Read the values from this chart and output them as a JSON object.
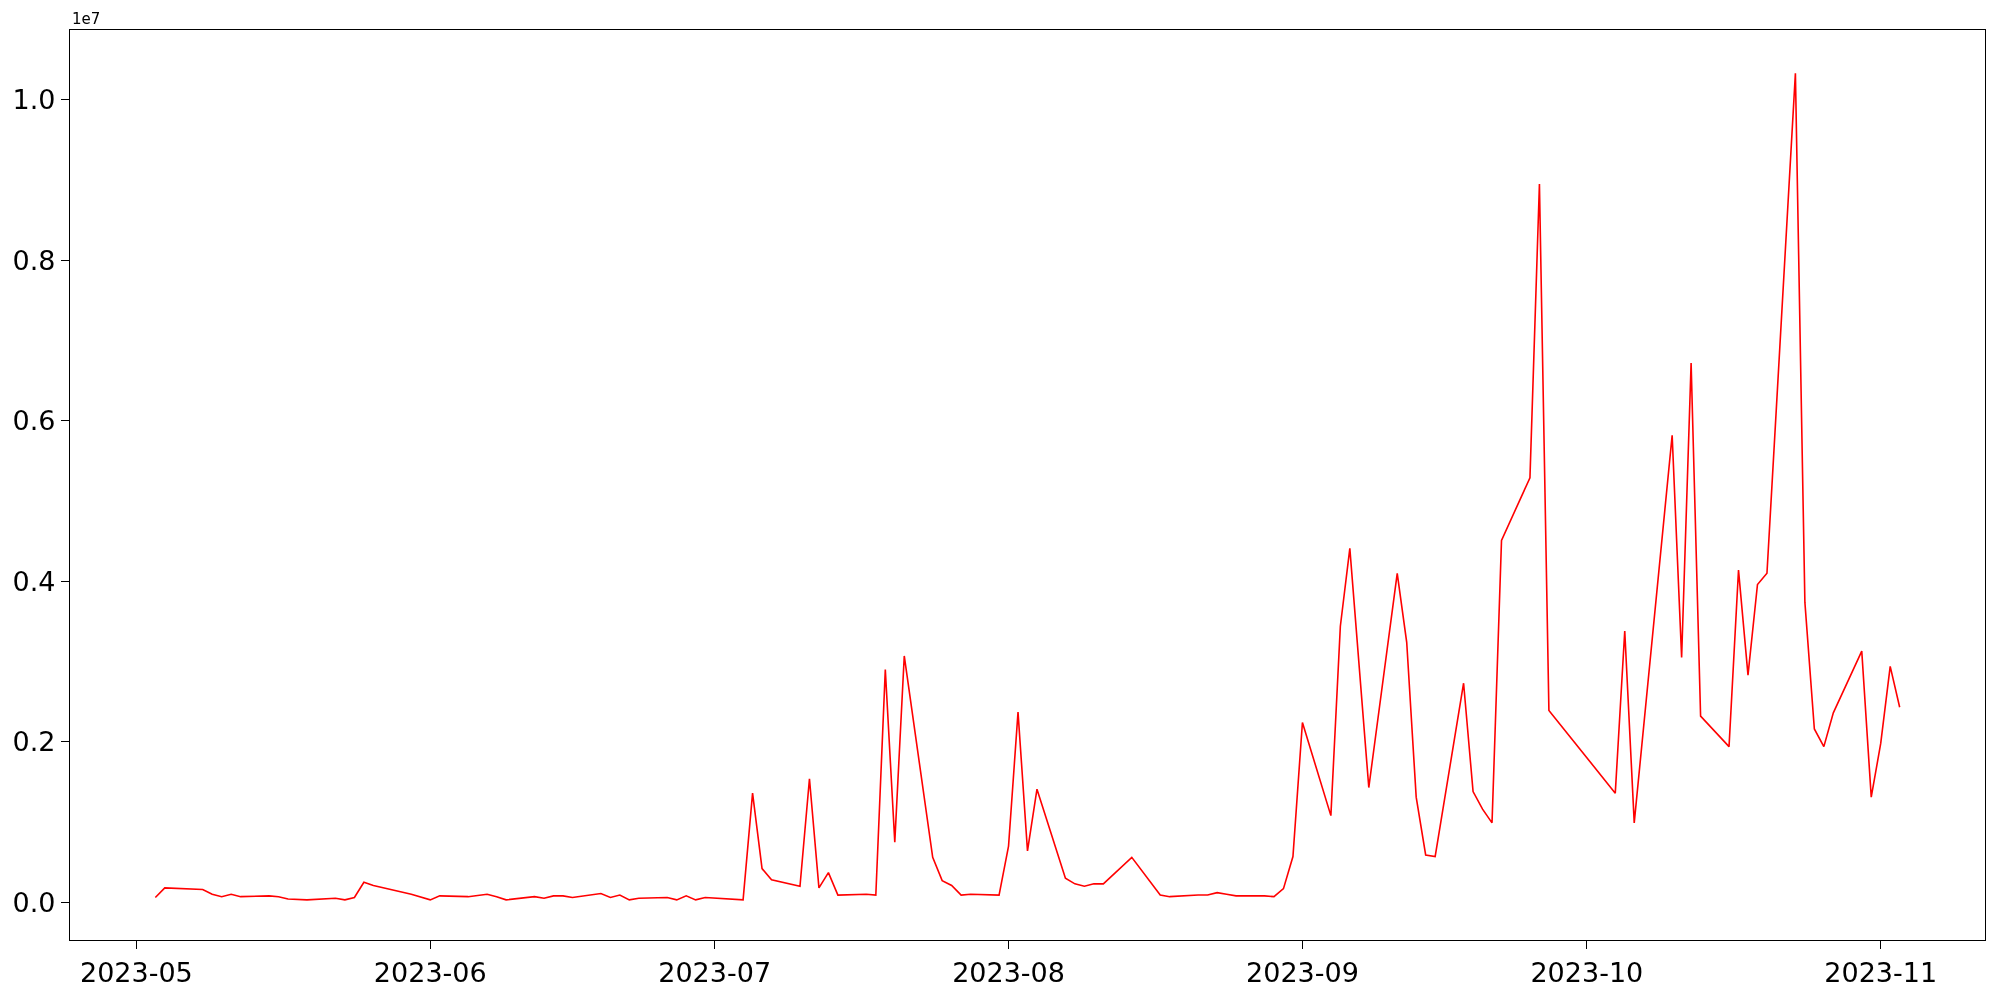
{
  "chart_data": {
    "type": "line",
    "annotations": [
      "1e7"
    ],
    "x": [
      "2023-05-03",
      "2023-05-04",
      "2023-05-08",
      "2023-05-09",
      "2023-05-10",
      "2023-05-11",
      "2023-05-12",
      "2023-05-15",
      "2023-05-16",
      "2023-05-17",
      "2023-05-19",
      "2023-05-22",
      "2023-05-23",
      "2023-05-24",
      "2023-05-25",
      "2023-05-26",
      "2023-05-30",
      "2023-06-01",
      "2023-06-02",
      "2023-06-05",
      "2023-06-07",
      "2023-06-08",
      "2023-06-09",
      "2023-06-12",
      "2023-06-13",
      "2023-06-14",
      "2023-06-15",
      "2023-06-16",
      "2023-06-19",
      "2023-06-20",
      "2023-06-21",
      "2023-06-22",
      "2023-06-23",
      "2023-06-26",
      "2023-06-27",
      "2023-06-28",
      "2023-06-29",
      "2023-06-30",
      "2023-07-04",
      "2023-07-05",
      "2023-07-06",
      "2023-07-07",
      "2023-07-10",
      "2023-07-11",
      "2023-07-12",
      "2023-07-13",
      "2023-07-14",
      "2023-07-17",
      "2023-07-18",
      "2023-07-19",
      "2023-07-20",
      "2023-07-21",
      "2023-07-24",
      "2023-07-25",
      "2023-07-26",
      "2023-07-27",
      "2023-07-28",
      "2023-07-31",
      "2023-08-01",
      "2023-08-02",
      "2023-08-03",
      "2023-08-04",
      "2023-08-07",
      "2023-08-08",
      "2023-08-09",
      "2023-08-10",
      "2023-08-11",
      "2023-08-14",
      "2023-08-17",
      "2023-08-18",
      "2023-08-21",
      "2023-08-22",
      "2023-08-23",
      "2023-08-24",
      "2023-08-25",
      "2023-08-28",
      "2023-08-29",
      "2023-08-30",
      "2023-08-31",
      "2023-09-01",
      "2023-09-04",
      "2023-09-05",
      "2023-09-06",
      "2023-09-08",
      "2023-09-11",
      "2023-09-12",
      "2023-09-13",
      "2023-09-14",
      "2023-09-15",
      "2023-09-18",
      "2023-09-19",
      "2023-09-20",
      "2023-09-21",
      "2023-09-22",
      "2023-09-25",
      "2023-09-26",
      "2023-09-27",
      "2023-10-04",
      "2023-10-05",
      "2023-10-06",
      "2023-10-10",
      "2023-10-11",
      "2023-10-12",
      "2023-10-13",
      "2023-10-16",
      "2023-10-17",
      "2023-10-18",
      "2023-10-19",
      "2023-10-20",
      "2023-10-23",
      "2023-10-24",
      "2023-10-25",
      "2023-10-26",
      "2023-10-27",
      "2023-10-30",
      "2023-10-31",
      "2023-11-01",
      "2023-11-02",
      "2023-11-03"
    ],
    "series": [
      {
        "color": "#ff0000",
        "values": [
          0.006,
          0.018,
          0.016,
          0.01,
          0.007,
          0.01,
          0.007,
          0.008,
          0.007,
          0.004,
          0.003,
          0.005,
          0.003,
          0.006,
          0.025,
          0.021,
          0.01,
          0.003,
          0.008,
          0.007,
          0.01,
          0.007,
          0.003,
          0.007,
          0.005,
          0.008,
          0.008,
          0.006,
          0.011,
          0.006,
          0.009,
          0.003,
          0.005,
          0.006,
          0.003,
          0.008,
          0.003,
          0.006,
          0.003,
          0.136,
          0.042,
          0.028,
          0.02,
          0.154,
          0.018,
          0.037,
          0.009,
          0.01,
          0.009,
          0.29,
          0.075,
          0.307,
          0.056,
          0.027,
          0.021,
          0.009,
          0.01,
          0.009,
          0.07,
          0.237,
          0.064,
          0.141,
          0.03,
          0.023,
          0.02,
          0.023,
          0.023,
          0.056,
          0.009,
          0.007,
          0.009,
          0.009,
          0.012,
          0.01,
          0.008,
          0.008,
          0.007,
          0.017,
          0.057,
          0.224,
          0.108,
          0.344,
          0.441,
          0.143,
          0.41,
          0.324,
          0.131,
          0.059,
          0.057,
          0.273,
          0.138,
          0.116,
          0.099,
          0.451,
          0.529,
          0.895,
          0.239,
          0.136,
          0.338,
          0.099,
          0.582,
          0.305,
          0.672,
          0.232,
          0.194,
          0.414,
          0.283,
          0.396,
          0.41,
          1.033,
          0.374,
          0.216,
          0.194,
          0.236,
          0.313,
          0.131,
          0.198,
          0.294,
          0.243
        ]
      }
    ],
    "xlim": [
      "2023-04-24",
      "2023-11-12"
    ],
    "xticks": [
      {
        "value": "2023-05-01",
        "label": "2023-05"
      },
      {
        "value": "2023-06-01",
        "label": "2023-06"
      },
      {
        "value": "2023-07-01",
        "label": "2023-07"
      },
      {
        "value": "2023-08-01",
        "label": "2023-08"
      },
      {
        "value": "2023-09-01",
        "label": "2023-09"
      },
      {
        "value": "2023-10-01",
        "label": "2023-10"
      },
      {
        "value": "2023-11-01",
        "label": "2023-11"
      }
    ],
    "ylim": [
      -0.047,
      1.087
    ],
    "yticks": [
      {
        "value": 0,
        "label": "0.0"
      },
      {
        "value": 0.2,
        "label": "0.2"
      },
      {
        "value": 0.4,
        "label": "0.4"
      },
      {
        "value": 0.6,
        "label": "0.6"
      },
      {
        "value": 0.8,
        "label": "0.8"
      },
      {
        "value": 1.0,
        "label": "1.0"
      }
    ],
    "marker": "none",
    "line_style": "solid"
  }
}
